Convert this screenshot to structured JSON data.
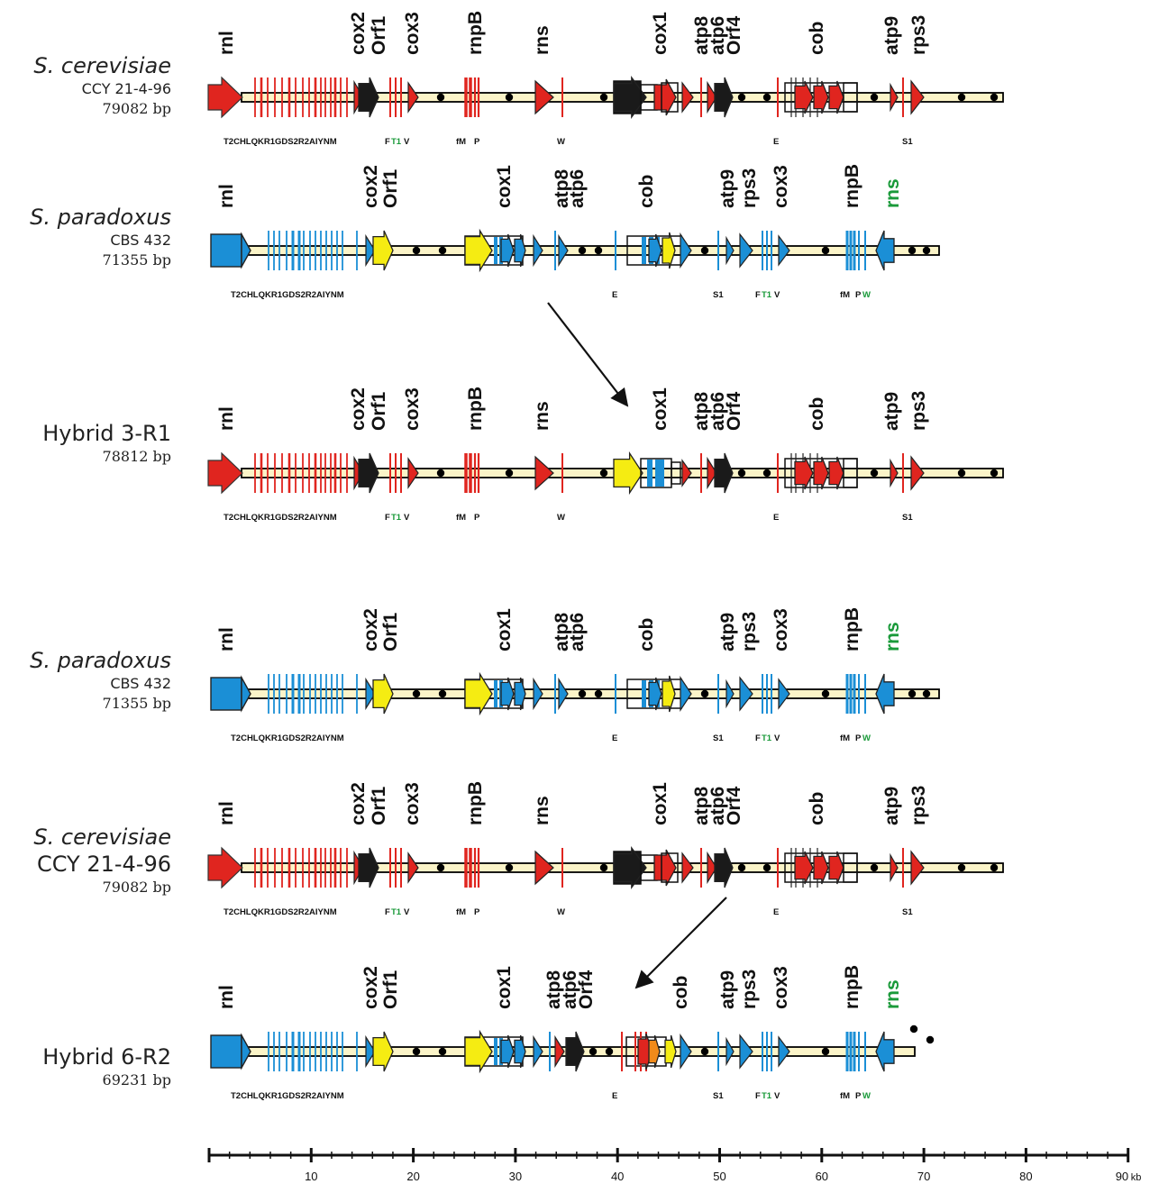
{
  "colors": {
    "cerevisiae": "#e0251f",
    "paradoxus": "#1b8fd6",
    "orf": "#1a1a1a",
    "yellow": "#f5ec12",
    "backbone": "#fbf4c8",
    "green": "#1a9a3a"
  },
  "scale": {
    "ticks": [
      "10",
      "20",
      "30",
      "40",
      "50",
      "60",
      "70",
      "80",
      "90"
    ],
    "unit": "kb"
  },
  "maps": [
    {
      "id": "sc1",
      "label": {
        "name": "S. cerevisiae",
        "italic": true,
        "sub": "CCY 21-4-96",
        "bp": "79082 bp"
      },
      "type": "cer",
      "genes": [
        "rnl",
        "cox2",
        "Orf1",
        "cox3",
        "rnpB",
        "rns",
        "cox1",
        "atp8",
        "atp6",
        "Orf4",
        "cob",
        "atp9",
        "rps3"
      ],
      "trna": [
        "T2CHLQKR1GDS2R2AIYNM",
        "F",
        "T1",
        "V",
        "fM",
        "P",
        "W",
        "E",
        "S1"
      ]
    },
    {
      "id": "sp1",
      "label": {
        "name": "S. paradoxus",
        "italic": true,
        "sub": "CBS 432",
        "bp": "71355 bp"
      },
      "type": "par",
      "genes": [
        "rnl",
        "cox2",
        "Orf1",
        "cox1",
        "atp8",
        "atp6",
        "cob",
        "atp9",
        "rps3",
        "cox3",
        "rnpB",
        "rns"
      ],
      "trna": [
        "T2CHLQKR1GDS2R2AIYNM",
        "E",
        "S1",
        "F",
        "T1",
        "V",
        "fM",
        "P",
        "W"
      ]
    },
    {
      "id": "h31",
      "label": {
        "name": "Hybrid 3-R1",
        "italic": false,
        "sub": "",
        "bp": "78812 bp"
      },
      "type": "h31",
      "genes": [
        "rnl",
        "cox2",
        "Orf1",
        "cox3",
        "rnpB",
        "rns",
        "cox1",
        "atp8",
        "atp6",
        "Orf4",
        "cob",
        "atp9",
        "rps3"
      ],
      "trna": [
        "T2CHLQKR1GDS2R2AIYNM",
        "F",
        "T1",
        "V",
        "fM",
        "P",
        "W",
        "E",
        "S1"
      ]
    },
    {
      "id": "sp2",
      "label": {
        "name": "S. paradoxus",
        "italic": true,
        "sub": "CBS 432",
        "bp": "71355 bp"
      },
      "type": "par",
      "genes": [
        "rnl",
        "cox2",
        "Orf1",
        "cox1",
        "atp8",
        "atp6",
        "cob",
        "atp9",
        "rps3",
        "cox3",
        "rnpB",
        "rns"
      ],
      "trna": [
        "T2CHLQKR1GDS2R2AIYNM",
        "E",
        "S1",
        "F",
        "T1",
        "V",
        "fM",
        "P",
        "W"
      ]
    },
    {
      "id": "sc2",
      "label": {
        "name": "S. cerevisiae",
        "italic": true,
        "name2": "CCY 21-4-96",
        "bp": "79082 bp"
      },
      "type": "cer",
      "genes": [
        "rnl",
        "cox2",
        "Orf1",
        "cox3",
        "rnpB",
        "rns",
        "cox1",
        "atp8",
        "atp6",
        "Orf4",
        "cob",
        "atp9",
        "rps3"
      ],
      "trna": [
        "T2CHLQKR1GDS2R2AIYNM",
        "F",
        "T1",
        "V",
        "fM",
        "P",
        "W",
        "E",
        "S1"
      ]
    },
    {
      "id": "h62",
      "label": {
        "name": "Hybrid 6-R2",
        "italic": false,
        "sub": "",
        "bp": "69231 bp"
      },
      "type": "h62",
      "genes": [
        "rnl",
        "cox2",
        "Orf1",
        "cox1",
        "atp8",
        "atp6",
        "Orf4",
        "cob",
        "atp9",
        "rps3",
        "cox3",
        "rnpB",
        "rns"
      ],
      "trna": [
        "T2CHLQKR1GDS2R2AIYNM",
        "E",
        "S1",
        "F",
        "T1",
        "V",
        "fM",
        "P",
        "W"
      ]
    }
  ]
}
